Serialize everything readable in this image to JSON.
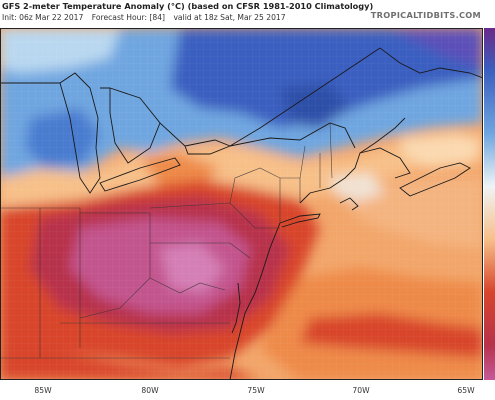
{
  "header": {
    "title": "GFS 2-meter Temperature Anomaly (°C) (based on CFSR 1981-2010 Climatology)",
    "brand": "TROPICALTIDBITS.COM",
    "init": "Init: 06z Mar 22 2017",
    "forecast": "Forecast Hour: [84]",
    "valid": "valid at 18z Sat, Mar 25 2017"
  },
  "map": {
    "longitude_labels": [
      "85W",
      "80W",
      "75W",
      "70W",
      "65W"
    ],
    "anomaly_colors": {
      "very_cold": "#3a5fc0",
      "cold": "#6fa6e0",
      "cool": "#b9d8f0",
      "neutral": "#eef4f6",
      "warm": "#f7c089",
      "warmer": "#ee8a4a",
      "hot": "#d8452c",
      "very_hot": "#b7324b",
      "extreme": "#c55a9a"
    }
  }
}
